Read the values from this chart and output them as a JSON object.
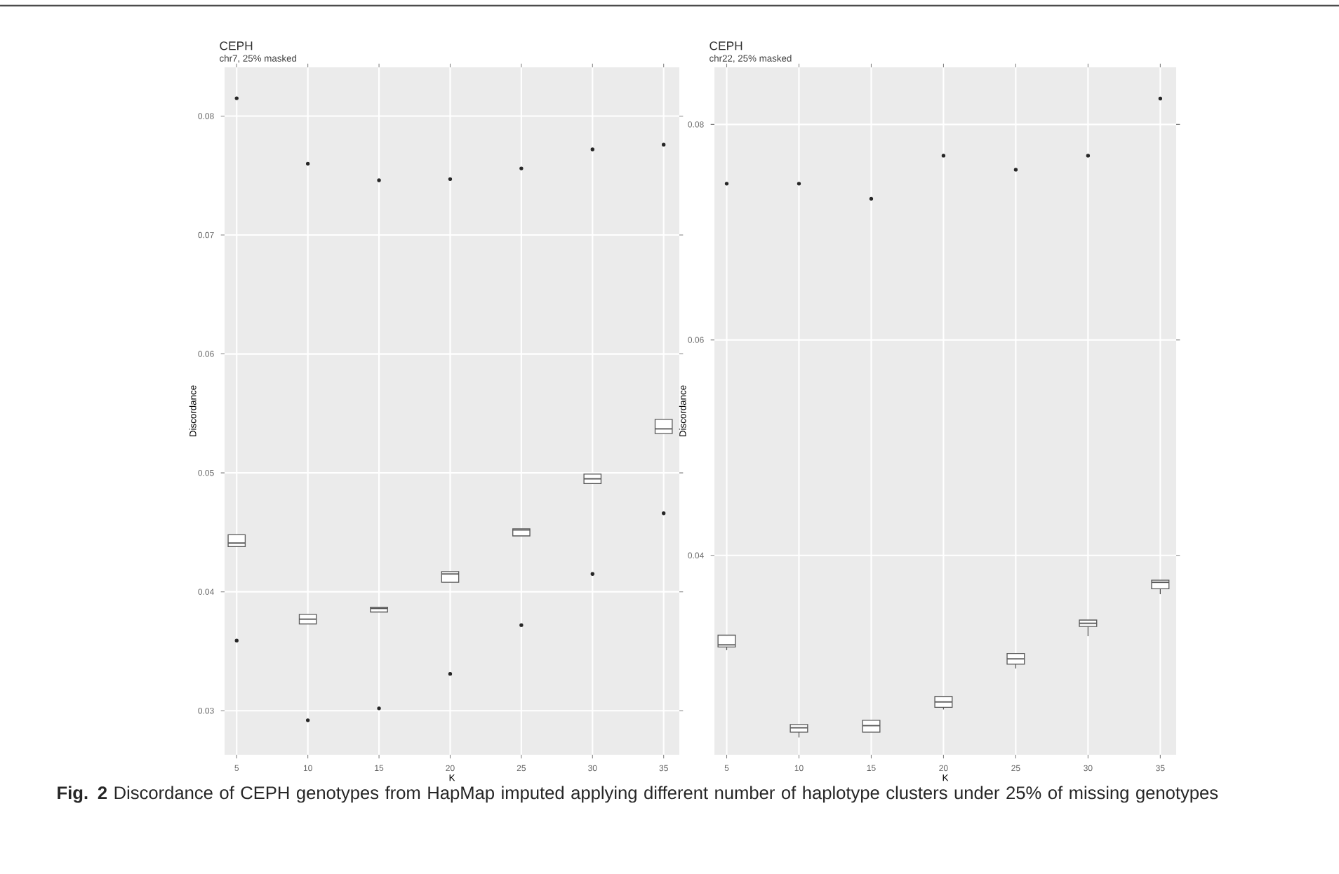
{
  "chart_data": [
    {
      "type": "box",
      "title": "CEPH",
      "subtitle": "chr7, 25% masked",
      "xlabel": "K",
      "ylabel": "Discordance",
      "categories": [
        "5",
        "10",
        "15",
        "20",
        "25",
        "30",
        "35"
      ],
      "boxes": [
        {
          "low": 0.0438,
          "q1": 0.0438,
          "median": 0.0441,
          "q3": 0.0448,
          "high": 0.0448,
          "outliers": [
            0.0815,
            0.0359
          ]
        },
        {
          "low": 0.0373,
          "q1": 0.0373,
          "median": 0.0377,
          "q3": 0.0381,
          "high": 0.0381,
          "outliers": [
            0.076,
            0.0292
          ]
        },
        {
          "low": 0.0383,
          "q1": 0.0383,
          "median": 0.0386,
          "q3": 0.0387,
          "high": 0.0387,
          "outliers": [
            0.0746,
            0.0302
          ]
        },
        {
          "low": 0.0408,
          "q1": 0.0408,
          "median": 0.0415,
          "q3": 0.0417,
          "high": 0.0417,
          "outliers": [
            0.0747,
            0.0331
          ]
        },
        {
          "low": 0.0447,
          "q1": 0.0447,
          "median": 0.0452,
          "q3": 0.0453,
          "high": 0.0453,
          "outliers": [
            0.0756,
            0.0372
          ]
        },
        {
          "low": 0.0491,
          "q1": 0.0491,
          "median": 0.0495,
          "q3": 0.0499,
          "high": 0.0499,
          "outliers": [
            0.0772,
            0.0415
          ]
        },
        {
          "low": 0.0533,
          "q1": 0.0533,
          "median": 0.0537,
          "q3": 0.0545,
          "high": 0.0545,
          "outliers": [
            0.0776,
            0.0466
          ]
        }
      ],
      "ylim": [
        0.0263,
        0.0841
      ],
      "yticks": [
        0.03,
        0.04,
        0.05,
        0.06,
        0.07,
        0.08
      ],
      "grid": true,
      "annotations": [
        "**Fig. 2** Discordance of CEPH genotypes from HapMap imputed applying different number of haplotype clusters under 25% of missing genotypes"
      ]
    },
    {
      "type": "box",
      "title": "CEPH",
      "subtitle": "chr22, 25% masked",
      "xlabel": "K",
      "ylabel": "Discordance",
      "categories": [
        "5",
        "10",
        "15",
        "20",
        "25",
        "30",
        "35"
      ],
      "boxes": [
        {
          "low": 0.0312,
          "q1": 0.0315,
          "median": 0.0317,
          "q3": 0.0326,
          "high": 0.0326,
          "outliers": [
            0.0745
          ]
        },
        {
          "low": 0.0231,
          "q1": 0.0236,
          "median": 0.024,
          "q3": 0.0243,
          "high": 0.0243,
          "outliers": [
            0.0745
          ]
        },
        {
          "low": 0.0236,
          "q1": 0.0236,
          "median": 0.0242,
          "q3": 0.0247,
          "high": 0.0247,
          "outliers": [
            0.0731
          ]
        },
        {
          "low": 0.0257,
          "q1": 0.0259,
          "median": 0.0264,
          "q3": 0.0269,
          "high": 0.0269,
          "outliers": [
            0.0771
          ]
        },
        {
          "low": 0.0295,
          "q1": 0.0299,
          "median": 0.0304,
          "q3": 0.0309,
          "high": 0.0309,
          "outliers": [
            0.0758
          ]
        },
        {
          "low": 0.0325,
          "q1": 0.0334,
          "median": 0.0337,
          "q3": 0.034,
          "high": 0.034,
          "outliers": [
            0.0771
          ]
        },
        {
          "low": 0.0364,
          "q1": 0.0369,
          "median": 0.0375,
          "q3": 0.0377,
          "high": 0.0377,
          "outliers": [
            0.0824
          ]
        }
      ],
      "ylim": [
        0.0215,
        0.0853
      ],
      "yticks": [
        0.04,
        0.06,
        0.08
      ],
      "grid": true
    }
  ]
}
